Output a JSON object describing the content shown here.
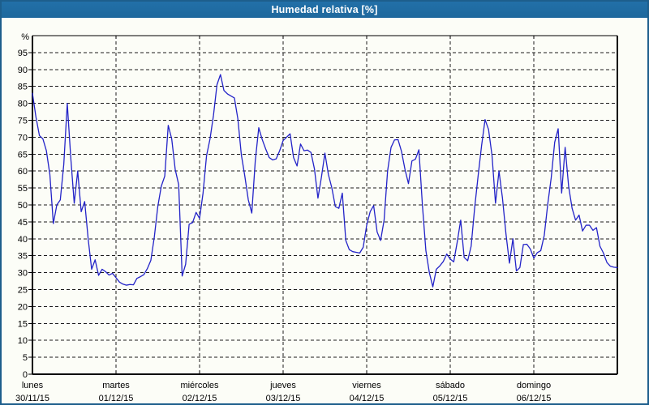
{
  "window": {
    "title": "Humedad relativa [%]"
  },
  "colors": {
    "titlebar_bg": "#1f6ba1",
    "titlebar_text": "#ffffff",
    "outer_border": "#1d5e8c",
    "page_bg": "#fcfdf7",
    "grid": "#1b1b1b",
    "frame": "#000000",
    "axis_text": "#000000",
    "line": "#2323c8"
  },
  "chart_data": {
    "type": "line",
    "title": "Humedad relativa [%]",
    "y_unit_label": "%",
    "ylabel": "%",
    "xlabel": "",
    "ylim": [
      0,
      100
    ],
    "yticks": [
      0,
      5,
      10,
      15,
      20,
      25,
      30,
      35,
      40,
      45,
      50,
      55,
      60,
      65,
      70,
      75,
      80,
      85,
      90,
      95
    ],
    "grid": "dashed",
    "legend_position": "none",
    "x_days": [
      {
        "name": "lunes",
        "date": "30/11/15"
      },
      {
        "name": "martes",
        "date": "01/12/15"
      },
      {
        "name": "miércoles",
        "date": "02/12/15"
      },
      {
        "name": "jueves",
        "date": "03/12/15"
      },
      {
        "name": "viernes",
        "date": "04/12/15"
      },
      {
        "name": "sábado",
        "date": "05/12/15"
      },
      {
        "name": "domingo",
        "date": "06/12/15"
      }
    ],
    "points_per_day": 24,
    "series": [
      {
        "name": "Humedad relativa",
        "color": "#2323c8",
        "values": [
          83,
          76,
          70.5,
          69.5,
          66,
          59,
          44.5,
          50,
          51.5,
          62,
          80,
          64,
          50.5,
          60,
          48,
          51,
          40,
          31,
          33.8,
          29.2,
          31,
          30.3,
          29.3,
          29.8,
          28.5,
          27.2,
          26.6,
          26.3,
          26.5,
          26.4,
          28.3,
          28.8,
          29.4,
          31.2,
          33.6,
          40.5,
          49.5,
          55.5,
          58.5,
          73.5,
          69.5,
          60.5,
          56,
          29,
          32.5,
          44.3,
          44.8,
          47.8,
          46,
          53.5,
          64.5,
          69.5,
          76.5,
          85.5,
          88.5,
          83.8,
          82.8,
          82.2,
          81.6,
          75.4,
          64.8,
          58.5,
          51.5,
          47.6,
          63,
          72.8,
          69.3,
          66.5,
          64,
          63.3,
          63.6,
          66,
          69,
          70,
          71,
          64,
          61.5,
          68,
          66,
          66.2,
          65.5,
          60.6,
          52,
          58.2,
          65.3,
          59,
          55,
          49.5,
          49,
          53.5,
          39.5,
          36.8,
          36.2,
          36,
          35.8,
          37.5,
          44,
          48,
          49.8,
          42,
          39.5,
          45.5,
          60,
          67,
          69.2,
          69.3,
          65.8,
          60.5,
          56.3,
          63,
          63.5,
          66.3,
          50,
          36.5,
          30,
          25.8,
          31,
          32,
          33.3,
          35.5,
          34,
          33.2,
          39,
          45.5,
          34.5,
          33.5,
          37.8,
          49,
          58.5,
          67.5,
          75.2,
          72.3,
          64.6,
          50.5,
          60,
          52,
          41.5,
          32.8,
          40,
          30.5,
          31.5,
          38.3,
          38.4,
          37,
          34.3,
          35.9,
          36.5,
          41,
          50.2,
          58,
          68.5,
          72.5,
          53.5,
          67,
          55.5,
          49,
          45.5,
          47,
          42.3,
          44,
          44,
          42.5,
          43.3,
          37.8,
          35.8,
          33,
          31.9,
          31.6,
          31.5
        ]
      }
    ]
  }
}
